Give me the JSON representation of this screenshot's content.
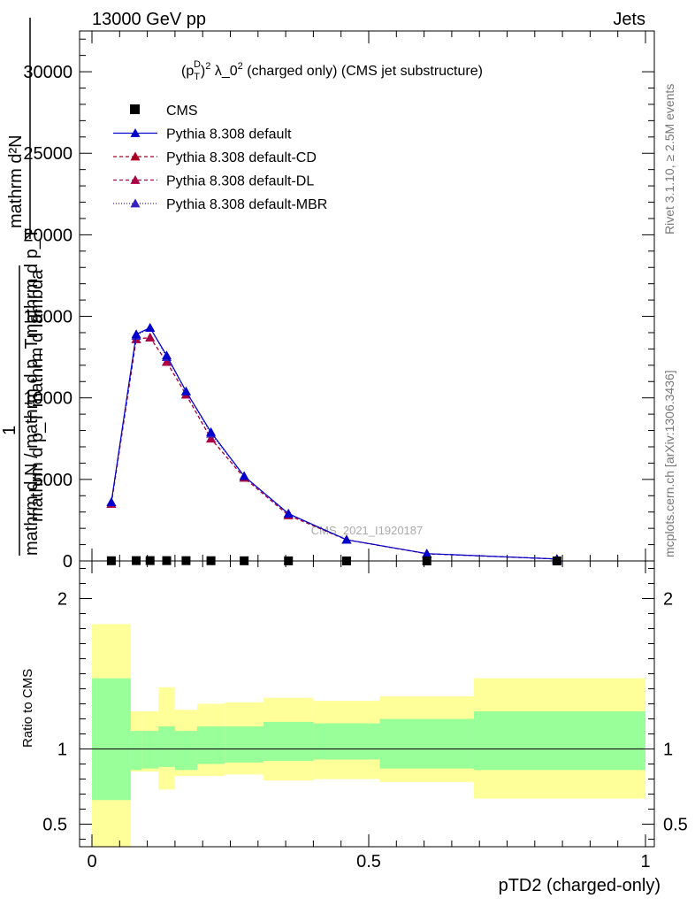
{
  "header": {
    "left": "13000 GeV pp",
    "right": "Jets"
  },
  "side": {
    "rivet": "Rivet 3.1.10, ≥ 2.5M events",
    "mcplots": "mcplots.cern.ch [arXiv:1306.3436]"
  },
  "chart_data": [
    {
      "type": "line",
      "title": "(p_T^D)^2 λ_0^2 (charged only) (CMS jet substructure)",
      "title_parts": {
        "p": "(p",
        "sub": "T",
        "sup_d": "D",
        "close": ")",
        "sq": "2",
        "lam": " λ_0",
        "rest": " (charged only) (CMS jet substructure)"
      },
      "ylabel_lines": [
        "mathrm d²N",
        "mathrm d p_T mathrm d lambda",
        "1",
        "mathrm d N / mathrm d p_Tmathrm d p_T"
      ],
      "ylabel_text": "mathrm d²N / mathrm d p_T mathrm d lambda · 1 / mathrm d N / mathrm d p_Tmathrm d p_T",
      "watermark": "CMS_2021_I1920187",
      "xlim": [
        0,
        1
      ],
      "ylim": [
        0,
        32500
      ],
      "yticks": [
        0,
        5000,
        10000,
        15000,
        20000,
        25000,
        30000
      ],
      "ytick_labels": [
        "0",
        "5000",
        "10000",
        "15000",
        "20000",
        "25000",
        "30000"
      ],
      "x": [
        0.035,
        0.08,
        0.105,
        0.135,
        0.17,
        0.215,
        0.275,
        0.355,
        0.46,
        0.605,
        0.84
      ],
      "series": [
        {
          "name": "CMS",
          "color": "#000000",
          "marker": "square",
          "values": [
            12,
            20,
            22,
            20,
            18,
            14,
            10,
            6,
            3,
            1,
            0.5
          ]
        },
        {
          "name": "Pythia 8.308 default",
          "color": "#0000cc",
          "dash": "solid",
          "marker": "triangle",
          "values": [
            3600,
            13900,
            14300,
            12600,
            10400,
            7900,
            5200,
            2900,
            1300,
            450,
            120
          ]
        },
        {
          "name": "Pythia 8.308 default-CD",
          "color": "#aa0022",
          "dash": "4,3",
          "marker": "triangle",
          "values": [
            3500,
            13600,
            13700,
            12200,
            10200,
            7500,
            5100,
            2800,
            1300,
            440,
            120
          ]
        },
        {
          "name": "Pythia 8.308 default-DL",
          "color": "#aa0044",
          "dash": "4,3",
          "marker": "triangle",
          "values": [
            3500,
            13600,
            13700,
            12200,
            10200,
            7500,
            5100,
            2800,
            1300,
            440,
            120
          ]
        },
        {
          "name": "Pythia 8.308 default-MBR",
          "color": "#3322bb",
          "dash": "1,2",
          "marker": "triangle",
          "values": [
            3600,
            13800,
            14300,
            12500,
            10400,
            7800,
            5200,
            2900,
            1300,
            450,
            120
          ]
        }
      ]
    },
    {
      "type": "area",
      "ylabel": "Ratio to CMS",
      "xlabel": "pTD2 (charged-only)",
      "xlim": [
        0,
        1
      ],
      "ylim": [
        0.35,
        2.25
      ],
      "yticks": [
        0.5,
        1,
        2
      ],
      "ytick_labels": [
        "0.5",
        "1",
        "2"
      ],
      "xticks": [
        0,
        0.5,
        1
      ],
      "xtick_labels": [
        "0",
        "0.5",
        "1"
      ],
      "bin_edges": [
        0,
        0.07,
        0.09,
        0.12,
        0.15,
        0.19,
        0.24,
        0.31,
        0.4,
        0.52,
        0.69,
        1.0
      ],
      "green_band": [
        [
          0.66,
          1.47
        ],
        [
          0.86,
          1.12
        ],
        [
          0.87,
          1.12
        ],
        [
          0.88,
          1.15
        ],
        [
          0.86,
          1.12
        ],
        [
          0.9,
          1.15
        ],
        [
          0.91,
          1.15
        ],
        [
          0.92,
          1.18
        ],
        [
          0.93,
          1.17
        ],
        [
          0.87,
          1.2
        ],
        [
          0.86,
          1.25
        ]
      ],
      "yellow_band": [
        [
          0.35,
          1.83
        ],
        [
          0.85,
          1.25
        ],
        [
          0.85,
          1.25
        ],
        [
          0.73,
          1.41
        ],
        [
          0.82,
          1.26
        ],
        [
          0.82,
          1.3
        ],
        [
          0.83,
          1.31
        ],
        [
          0.79,
          1.34
        ],
        [
          0.8,
          1.32
        ],
        [
          0.78,
          1.35
        ],
        [
          0.67,
          1.47
        ]
      ],
      "reference": 1.0,
      "colors": {
        "green": "#99ff99",
        "yellow": "#ffff99"
      }
    }
  ]
}
